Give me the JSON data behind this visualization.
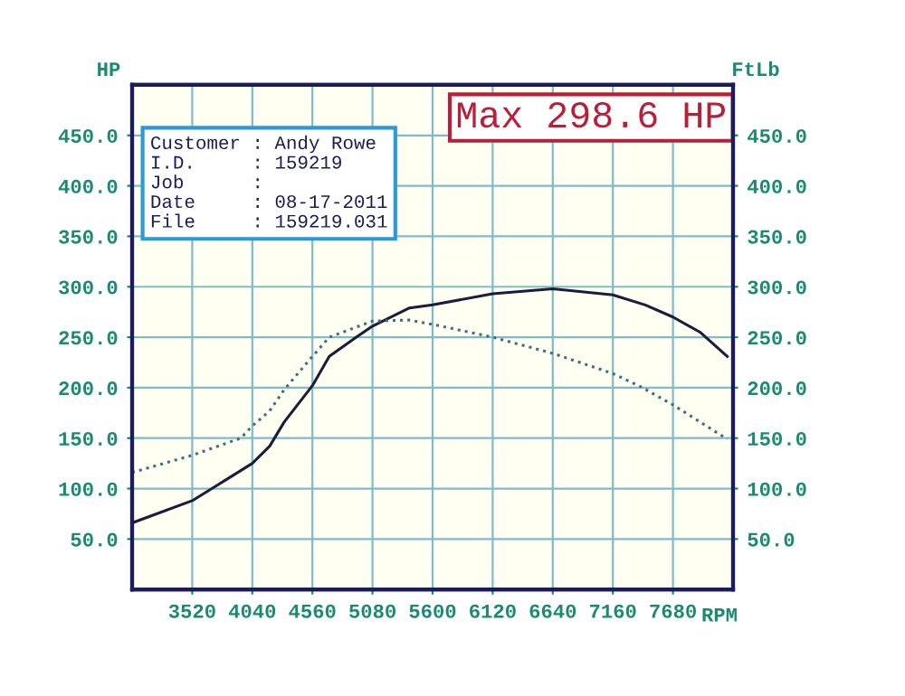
{
  "chart_data": {
    "type": "line",
    "ylabel": "HP",
    "y2label": "FtLb",
    "xlabel": "RPM",
    "annotations": [
      "Max 298.6 HP",
      "Customer : Andy Rowe",
      "I.D.     : 159219",
      "Job      :",
      "Date     : 08-17-2011",
      "File     : 159219.031"
    ],
    "series": [
      {
        "color": "#1c1c3c",
        "line_style": "solid",
        "x": [
          3000,
          3520,
          3690,
          4040,
          4190,
          4316,
          4560,
          4706,
          4940,
          5080,
          5400,
          5600,
          6120,
          6640,
          7160,
          7440,
          7680,
          7914,
          8150
        ],
        "values": [
          66,
          88,
          100,
          125,
          142,
          166,
          202,
          231,
          250,
          261,
          279,
          282,
          293,
          298,
          292,
          282,
          270,
          255,
          231
        ]
      },
      {
        "color": "#3c7080",
        "line_style": "dotted",
        "axis": "y2",
        "x": [
          3000,
          3520,
          3940,
          4040,
          4190,
          4316,
          4560,
          4706,
          5080,
          5400,
          5672,
          6120,
          6640,
          7160,
          7400,
          7680,
          8150
        ],
        "values": [
          116,
          133,
          150,
          162,
          177,
          198,
          231,
          250,
          266,
          267,
          261,
          250,
          234,
          214,
          201,
          183,
          149
        ]
      }
    ],
    "xlim": [
      3000,
      8200
    ],
    "xticks": [
      3520,
      4040,
      4560,
      5080,
      5600,
      6120,
      6640,
      7160,
      7680
    ],
    "ylim": [
      0,
      500
    ],
    "yticks": [
      {
        "value": 50,
        "label": "50.0"
      },
      {
        "value": 100,
        "label": "100.0"
      },
      {
        "value": 150,
        "label": "150.0"
      },
      {
        "value": 200,
        "label": "200.0"
      },
      {
        "value": 250,
        "label": "250.0"
      },
      {
        "value": 300,
        "label": "300.0"
      },
      {
        "value": 350,
        "label": "350.0"
      },
      {
        "value": 400,
        "label": "400.0"
      },
      {
        "value": 450,
        "label": "450.0"
      }
    ],
    "y2lim": [
      0,
      500
    ],
    "y2ticks": [
      {
        "value": 50,
        "label": "50.0"
      },
      {
        "value": 100,
        "label": "100.0"
      },
      {
        "value": 150,
        "label": "150.0"
      },
      {
        "value": 200,
        "label": "200.0"
      },
      {
        "value": 250,
        "label": "250.0"
      },
      {
        "value": 300,
        "label": "300.0"
      },
      {
        "value": 350,
        "label": "350.0"
      },
      {
        "value": 400,
        "label": "400.0"
      },
      {
        "value": 450,
        "label": "450.0"
      }
    ],
    "grid": true,
    "marker": "none"
  }
}
